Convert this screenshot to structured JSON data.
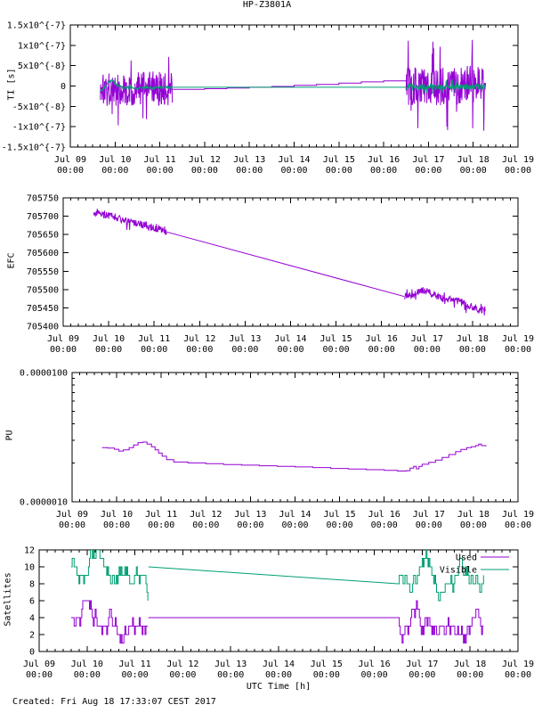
{
  "page": {
    "title": "HP-Z3801A",
    "xlabel": "UTC Time [h]",
    "footer": "Created: Fri Aug 18 17:33:07 CEST 2017"
  },
  "colors": {
    "purple": "#9400d3",
    "green": "#009e73",
    "axis": "#000000",
    "text": "#000000",
    "background": "#ffffff"
  },
  "seed": 1337,
  "x_axis": {
    "days": [
      "Jul 09",
      "Jul 10",
      "Jul 11",
      "Jul 12",
      "Jul 13",
      "Jul 14",
      "Jul 15",
      "Jul 16",
      "Jul 17",
      "Jul 18",
      "Jul 19"
    ],
    "time_label": "00:00",
    "range_days": [
      0,
      10
    ],
    "minor_divisions_per_day": 6
  },
  "chart_data": [
    {
      "id": "ti",
      "type": "line",
      "title": "HP-Z3801A",
      "ylabel": "TI [s]",
      "scale": "linear",
      "ylim": [
        -1.5e-07,
        1.5e-07
      ],
      "yticks": [
        {
          "v": 1.5e-07,
          "label": "1.5x10^{-7}"
        },
        {
          "v": 1e-07,
          "label": "1x10^{-7}"
        },
        {
          "v": 5e-08,
          "label": "5x10^{-8}"
        },
        {
          "v": 0,
          "label": "0"
        },
        {
          "v": -5e-08,
          "label": "-5x10^{-8}"
        },
        {
          "v": -1e-07,
          "label": "-1x10^{-7}"
        },
        {
          "v": -1.5e-07,
          "label": "-1.5x10^{-7}"
        }
      ],
      "series": [
        {
          "name": "ti-raw",
          "color": "purple",
          "segments": [
            {
              "kind": "noise",
              "t": [
                0.67,
                2.28
              ],
              "dt": 0.008,
              "base": [
                [
                  0.67,
                  -8e-09
                ],
                [
                  2.28,
                  -6e-09
                ]
              ],
              "amp": 4.2e-08,
              "spike_p": 0.1,
              "spike_amp": 9.5e-08
            },
            {
              "kind": "path",
              "mode": "step",
              "points": [
                [
                  2.28,
                  -8e-09
                ],
                [
                  3,
                  -6.5e-09
                ],
                [
                  3.5,
                  -5e-09
                ],
                [
                  4,
                  -3e-09
                ],
                [
                  4.5,
                  -1e-09
                ],
                [
                  5,
                  1.5e-09
                ],
                [
                  5.5,
                  4e-09
                ],
                [
                  6,
                  7e-09
                ],
                [
                  6.5,
                  1e-08
                ],
                [
                  7,
                  1.25e-08
                ],
                [
                  7.5,
                  1.45e-08
                ]
              ]
            },
            {
              "kind": "noise",
              "t": [
                7.5,
                9.28
              ],
              "dt": 0.008,
              "base": [
                [
                  7.5,
                  0
                ],
                [
                  9.28,
                  2e-09
                ]
              ],
              "amp": 4.8e-08,
              "spike_p": 0.12,
              "spike_amp": 1.15e-07
            }
          ]
        },
        {
          "name": "ti-smoothed",
          "color": "green",
          "segments": [
            {
              "kind": "noise",
              "t": [
                0.67,
                2.28
              ],
              "dt": 0.01,
              "base": [
                [
                  0.67,
                  -1.3e-08
                ],
                [
                  0.76,
                  -5e-09
                ],
                [
                  0.84,
                  6e-09
                ],
                [
                  0.92,
                  1.7e-08
                ],
                [
                  1.0,
                  7e-09
                ],
                [
                  1.08,
                  0
                ],
                [
                  1.18,
                  -5e-09
                ],
                [
                  1.32,
                  -2e-09
                ],
                [
                  1.48,
                  -6e-09
                ],
                [
                  1.64,
                  -3e-09
                ],
                [
                  1.82,
                  -5e-09
                ],
                [
                  2.0,
                  -3e-09
                ],
                [
                  2.28,
                  -4e-09
                ]
              ],
              "amp": 3e-09,
              "spike_p": 0.05,
              "spike_amp": 6e-09
            },
            {
              "kind": "path",
              "mode": "linear",
              "points": [
                [
                  2.28,
                  -3e-09
                ],
                [
                  7.5,
                  -3e-09
                ]
              ]
            },
            {
              "kind": "noise",
              "t": [
                7.5,
                9.28
              ],
              "dt": 0.008,
              "base": [
                [
                  7.5,
                  -2e-09
                ],
                [
                  9.28,
                  -1e-09
                ]
              ],
              "amp": 7e-09,
              "spike_p": 0.08,
              "spike_amp": 1.8e-08
            }
          ]
        }
      ]
    },
    {
      "id": "efc",
      "type": "line",
      "ylabel": "EFC",
      "scale": "linear",
      "ylim": [
        705400,
        705750
      ],
      "yticks": [
        {
          "v": 705750,
          "label": "705750"
        },
        {
          "v": 705700,
          "label": "705700"
        },
        {
          "v": 705650,
          "label": "705650"
        },
        {
          "v": 705600,
          "label": "705600"
        },
        {
          "v": 705550,
          "label": "705550"
        },
        {
          "v": 705500,
          "label": "705500"
        },
        {
          "v": 705450,
          "label": "705450"
        },
        {
          "v": 705400,
          "label": "705400"
        }
      ],
      "series": [
        {
          "name": "efc",
          "color": "purple",
          "segments": [
            {
              "kind": "noise",
              "t": [
                0.67,
                2.28
              ],
              "dt": 0.01,
              "base": [
                [
                  0.67,
                  705712
                ],
                [
                  1.2,
                  705695
                ],
                [
                  2.28,
                  705660
                ]
              ],
              "amp": 11,
              "spike_p": 0.1,
              "spike_amp": 26
            },
            {
              "kind": "path",
              "mode": "linear",
              "points": [
                [
                  2.28,
                  705657
                ],
                [
                  7.5,
                  705481
                ]
              ]
            },
            {
              "kind": "noise",
              "t": [
                7.5,
                9.28
              ],
              "dt": 0.01,
              "base": [
                [
                  7.5,
                  705482
                ],
                [
                  7.95,
                  705498
                ],
                [
                  8.35,
                  705475
                ],
                [
                  8.7,
                  705468
                ],
                [
                  9.0,
                  705452
                ],
                [
                  9.28,
                  705443
                ]
              ],
              "amp": 10,
              "spike_p": 0.1,
              "spike_amp": 24
            }
          ]
        }
      ]
    },
    {
      "id": "pu",
      "type": "line",
      "ylabel": "PU",
      "scale": "log",
      "ylim": [
        1e-06,
        1e-05
      ],
      "yticks": [
        {
          "v": 1e-05,
          "label": "0.0000100"
        },
        {
          "v": 1e-06,
          "label": "0.0000010"
        }
      ],
      "yminor": [
        2e-06,
        3e-06,
        4e-06,
        5e-06,
        6e-06,
        7e-06,
        8e-06,
        9e-06
      ],
      "series": [
        {
          "name": "pu",
          "color": "purple",
          "segments": [
            {
              "kind": "path",
              "mode": "step",
              "points": [
                [
                  0.67,
                  2.62e-06
                ],
                [
                  0.8,
                  2.6e-06
                ],
                [
                  0.95,
                  2.55e-06
                ],
                [
                  1.05,
                  2.47e-06
                ],
                [
                  1.15,
                  2.52e-06
                ],
                [
                  1.28,
                  2.62e-06
                ],
                [
                  1.38,
                  2.75e-06
                ],
                [
                  1.48,
                  2.87e-06
                ],
                [
                  1.58,
                  2.9e-06
                ],
                [
                  1.68,
                  2.8e-06
                ],
                [
                  1.78,
                  2.67e-06
                ],
                [
                  1.86,
                  2.52e-06
                ],
                [
                  1.94,
                  2.38e-06
                ],
                [
                  2.02,
                  2.25e-06
                ],
                [
                  2.12,
                  2.12e-06
                ],
                [
                  2.28,
                  2.03e-06
                ],
                [
                  2.6,
                  2e-06
                ],
                [
                  3.0,
                  1.97e-06
                ],
                [
                  3.4,
                  1.94e-06
                ],
                [
                  3.8,
                  1.92e-06
                ],
                [
                  4.2,
                  1.9e-06
                ],
                [
                  4.6,
                  1.88e-06
                ],
                [
                  5.0,
                  1.86e-06
                ],
                [
                  5.4,
                  1.84e-06
                ],
                [
                  5.8,
                  1.81e-06
                ],
                [
                  6.2,
                  1.79e-06
                ],
                [
                  6.6,
                  1.77e-06
                ],
                [
                  7.0,
                  1.75e-06
                ],
                [
                  7.3,
                  1.73e-06
                ],
                [
                  7.5,
                  1.74e-06
                ],
                [
                  7.58,
                  1.82e-06
                ],
                [
                  7.66,
                  1.88e-06
                ],
                [
                  7.72,
                  1.8e-06
                ],
                [
                  7.78,
                  1.88e-06
                ],
                [
                  7.85,
                  1.95e-06
                ],
                [
                  8.0,
                  2.02e-06
                ],
                [
                  8.15,
                  2.1e-06
                ],
                [
                  8.3,
                  2.2e-06
                ],
                [
                  8.45,
                  2.32e-06
                ],
                [
                  8.6,
                  2.44e-06
                ],
                [
                  8.72,
                  2.54e-06
                ],
                [
                  8.85,
                  2.62e-06
                ],
                [
                  8.95,
                  2.67e-06
                ],
                [
                  9.05,
                  2.72e-06
                ],
                [
                  9.12,
                  2.8e-06
                ],
                [
                  9.18,
                  2.72e-06
                ],
                [
                  9.28,
                  2.68e-06
                ]
              ]
            }
          ]
        }
      ]
    },
    {
      "id": "satellites",
      "type": "line",
      "ylabel": "Satellites",
      "scale": "linear",
      "ylim": [
        0,
        12
      ],
      "yticks": [
        {
          "v": 12,
          "label": "12"
        },
        {
          "v": 10,
          "label": "10"
        },
        {
          "v": 8,
          "label": "8"
        },
        {
          "v": 6,
          "label": "6"
        },
        {
          "v": 4,
          "label": "4"
        },
        {
          "v": 2,
          "label": "2"
        },
        {
          "v": 0,
          "label": "0"
        }
      ],
      "legend": {
        "entries": [
          {
            "label": "Used",
            "color": "purple"
          },
          {
            "label": "Visible",
            "color": "green"
          }
        ]
      },
      "series": [
        {
          "name": "used",
          "color": "purple",
          "segments": [
            {
              "kind": "walk",
              "t": [
                0.67,
                2.28
              ],
              "dt": 0.02,
              "start": 4,
              "min": 1,
              "max": 6,
              "center": 3.7
            },
            {
              "kind": "path",
              "mode": "linear",
              "points": [
                [
                  2.28,
                  4
                ],
                [
                  7.5,
                  4
                ]
              ]
            },
            {
              "kind": "walk",
              "t": [
                7.5,
                9.28
              ],
              "dt": 0.02,
              "start": 4,
              "min": 1,
              "max": 6,
              "center": 3.6
            }
          ]
        },
        {
          "name": "visible",
          "color": "green",
          "segments": [
            {
              "kind": "walk",
              "t": [
                0.67,
                2.28
              ],
              "dt": 0.02,
              "start": 10,
              "min": 6,
              "max": 12,
              "center": 9.9
            },
            {
              "kind": "path",
              "mode": "linear",
              "points": [
                [
                  2.28,
                  10
                ],
                [
                  7.5,
                  8
                ]
              ]
            },
            {
              "kind": "walk",
              "t": [
                7.5,
                9.28
              ],
              "dt": 0.02,
              "start": 8,
              "min": 6,
              "max": 12,
              "center": 9.6
            }
          ]
        }
      ]
    }
  ]
}
